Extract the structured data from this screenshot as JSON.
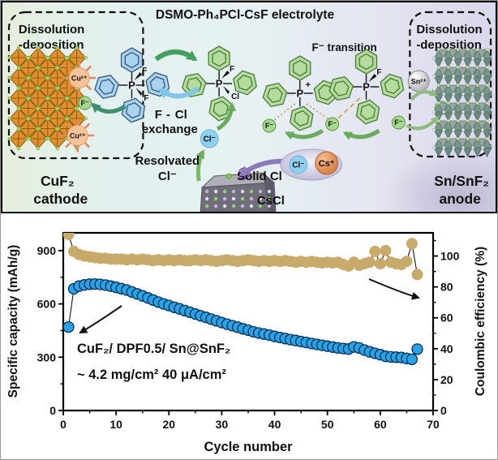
{
  "colors": {
    "ring_blue": "#a9d3ee",
    "ring_green": "#b4dc9c",
    "capacity_series": "#29a3e8",
    "efficiency_series": "#c8aa6a",
    "cuf2_orange": "#e0912c",
    "cathode_text": "#e0882a",
    "anode_text": "#9a9fa3",
    "cscl_purple": "#7a55a0",
    "f_green": "#3aa048",
    "cl_blue": "#3b6fd0"
  },
  "schematic": {
    "title": "DSMO-Ph₄PCl-CsF electrolyte",
    "left_box": {
      "line1": "Dissolution",
      "line2": "-deposition"
    },
    "right_box": {
      "line1": "Dissolution",
      "line2": "-deposition"
    },
    "cathode_label": {
      "formula": "CuF₂",
      "word": "cathode"
    },
    "anode_label": {
      "formula": "Sn/SnF₂",
      "word": "anode"
    },
    "f_transition_label": "F⁻ transition",
    "exchange_label": {
      "f": "F",
      "dash": "-",
      "cl": "Cl",
      "word": "exchange"
    },
    "resolvated_label": {
      "line1": "Resolvated",
      "line2": "Cl⁻"
    },
    "solid_cl_label": "Solid Cl",
    "cscl_label": "CsCl",
    "ions": {
      "cu": "Cu²⁺",
      "sn": "Sn²⁺",
      "f": "F⁻",
      "cl": "Cl⁻",
      "cs": "Cs⁺"
    },
    "atoms": {
      "p": "P",
      "plus": "+",
      "f": "F",
      "cl": "Cl"
    }
  },
  "chart_data": {
    "type": "scatter",
    "xlabel": "Cycle number",
    "ylabel_left": "Specific capacity (mAh/g)",
    "ylabel_right": "Coulombic efficiency (%)",
    "annotation_line1": "CuF₂/ DPF0.5/ Sn@SnF₂",
    "annotation_line2": "~ 4.2 mg/cm² 40 μA/cm²",
    "xlim": [
      0,
      70
    ],
    "left_ylim": [
      0,
      1000
    ],
    "right_ylim": [
      0,
      115
    ],
    "x_ticks": [
      0,
      10,
      20,
      30,
      40,
      50,
      60,
      70
    ],
    "x_minor_step": 5,
    "left_ticks": [
      0,
      300,
      600,
      900
    ],
    "left_minor_step": 150,
    "right_ticks": [
      0,
      20,
      40,
      60,
      80,
      100
    ],
    "right_minor_step": 10,
    "grid": false,
    "legend": "none",
    "series": [
      {
        "name": "Specific capacity",
        "axis": "left",
        "color": "#29a3e8",
        "x_start": 1,
        "x_step": 1,
        "y": [
          470,
          685,
          700,
          707,
          711,
          712,
          710,
          706,
          700,
          693,
          686,
          678,
          667,
          656,
          645,
          634,
          622,
          610,
          600,
          591,
          581,
          572,
          562,
          553,
          543,
          533,
          524,
          514,
          505,
          495,
          486,
          477,
          469,
          460,
          452,
          443,
          436,
          430,
          424,
          417,
          411,
          405,
          399,
          394,
          388,
          383,
          377,
          372,
          367,
          362,
          357,
          352,
          349,
          346,
          358,
          352,
          340,
          330,
          322,
          314,
          305,
          302,
          300,
          298,
          293,
          288,
          345
        ]
      },
      {
        "name": "Coulombic efficiency",
        "axis": "right",
        "color": "#c8aa6a",
        "x_start": 1,
        "x_step": 1,
        "y": [
          114,
          103,
          101,
          100,
          99.5,
          99,
          98.5,
          98.5,
          98,
          98,
          98,
          97.5,
          98,
          97.5,
          98,
          97.5,
          97,
          97.5,
          97,
          97.5,
          97,
          97.5,
          97,
          97,
          97.5,
          97,
          97.5,
          97,
          96.5,
          97,
          97.5,
          97,
          96.5,
          97,
          97.5,
          97,
          96.5,
          97,
          96.5,
          97,
          96.5,
          97,
          96.5,
          96,
          96.5,
          96,
          96.5,
          96,
          95.5,
          96,
          95.5,
          96,
          94.5,
          93.5,
          96,
          94,
          95,
          96,
          103,
          95,
          103.5,
          96,
          95,
          94.5,
          96.5,
          108,
          88
        ]
      }
    ]
  }
}
